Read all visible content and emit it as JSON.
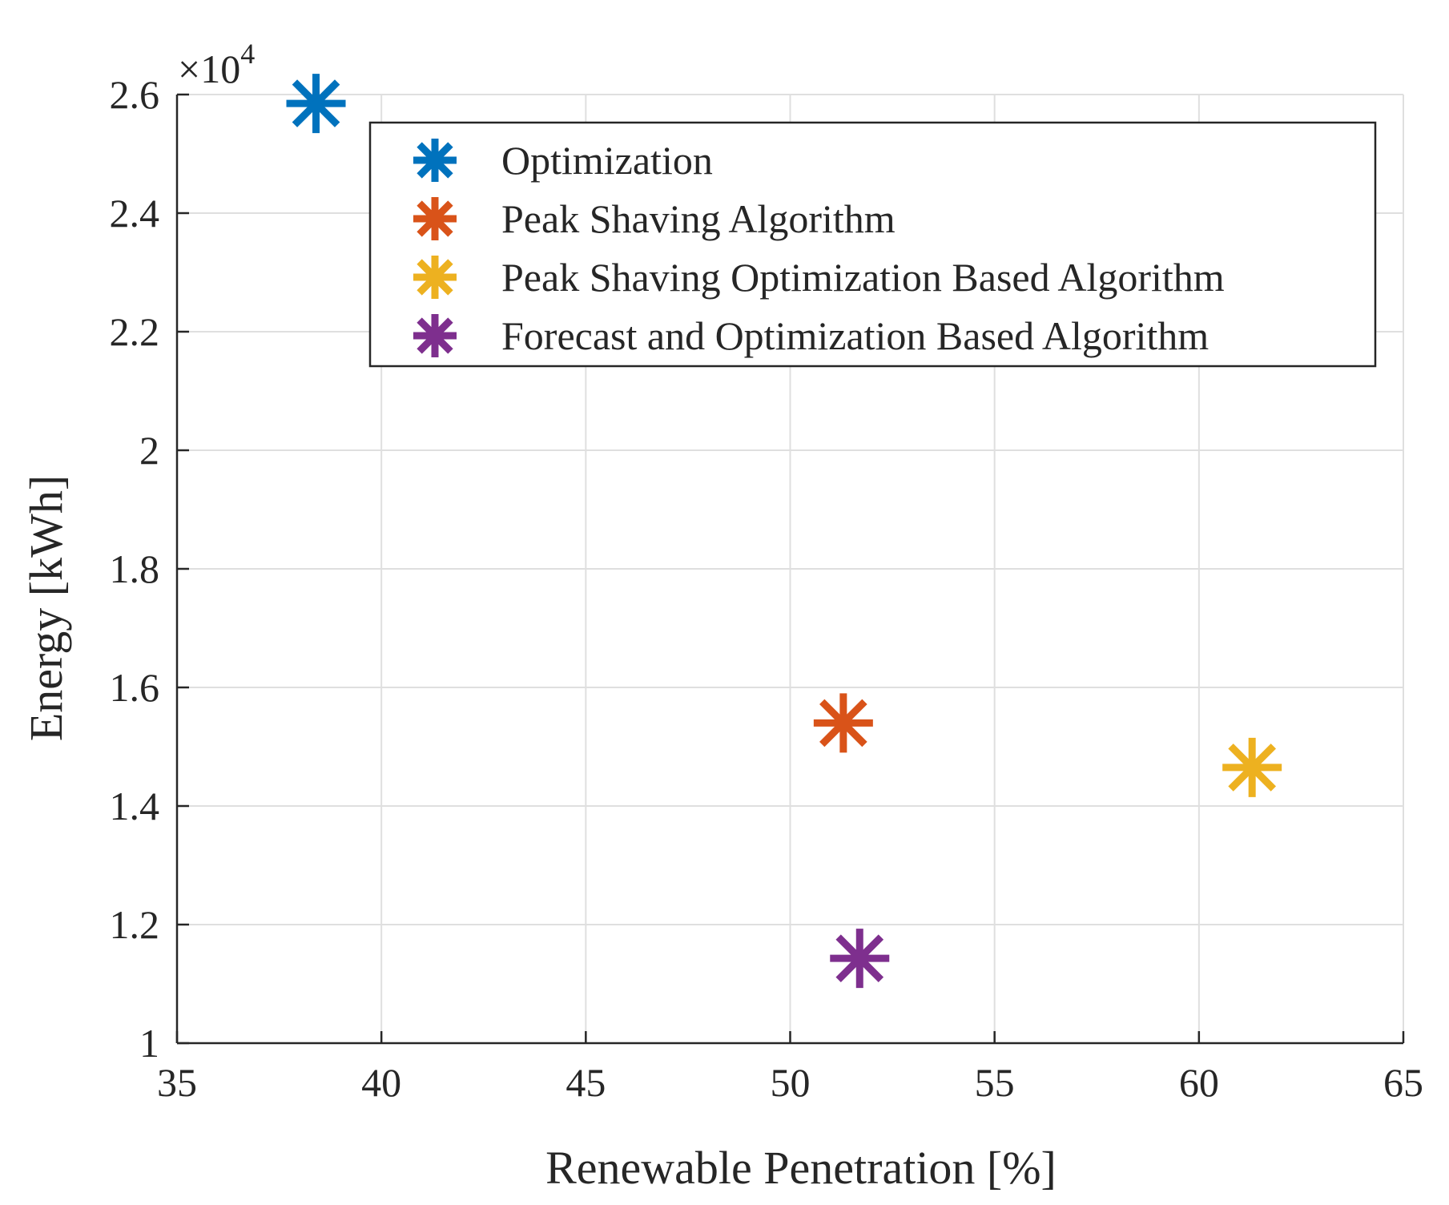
{
  "chart_data": {
    "type": "scatter",
    "title": "",
    "xlabel": "Renewable Penetration [%]",
    "ylabel": "Energy [kWh]",
    "xlim": [
      35,
      65
    ],
    "ylim": [
      1,
      2.6
    ],
    "y_multiplier_label": "×10",
    "y_multiplier_exponent": "4",
    "xticks": [
      35,
      40,
      45,
      50,
      55,
      60,
      65
    ],
    "xtick_labels": [
      "35",
      "40",
      "45",
      "50",
      "55",
      "60",
      "65"
    ],
    "yticks": [
      1,
      1.2,
      1.4,
      1.6,
      1.8,
      2,
      2.2,
      2.4,
      2.6
    ],
    "ytick_labels": [
      "1",
      "1.2",
      "1.4",
      "1.6",
      "1.8",
      "2",
      "2.2",
      "2.4",
      "2.6"
    ],
    "grid": true,
    "legend_position": "top-right",
    "series": [
      {
        "name": "Optimization",
        "color": "#0072BD",
        "marker": "asterisk",
        "x": [
          38.4
        ],
        "y": [
          2.585
        ]
      },
      {
        "name": "Peak Shaving Algorithm",
        "color": "#D95319",
        "marker": "asterisk",
        "x": [
          51.3
        ],
        "y": [
          1.54
        ]
      },
      {
        "name": "Peak Shaving Optimization Based Algorithm",
        "color": "#EDB120",
        "marker": "asterisk",
        "x": [
          61.3
        ],
        "y": [
          1.465
        ]
      },
      {
        "name": "Forecast and Optimization Based Algorithm",
        "color": "#7E2F8E",
        "marker": "asterisk",
        "x": [
          51.7
        ],
        "y": [
          1.143
        ]
      }
    ]
  }
}
